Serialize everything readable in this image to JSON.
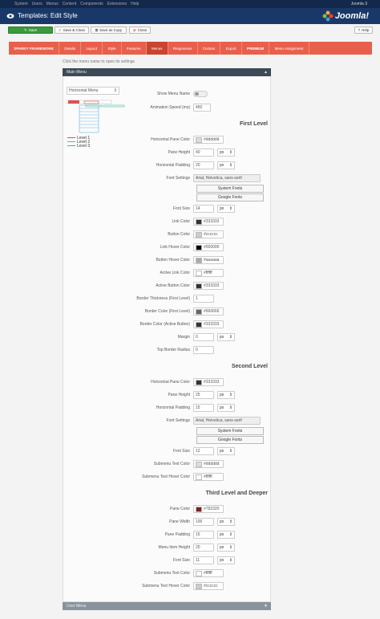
{
  "topbar": {
    "menu": [
      "System",
      "Users",
      "Menus",
      "Content",
      "Components",
      "Extensions",
      "Help"
    ],
    "user": "Joomla 3"
  },
  "header": {
    "title": "Templates: Edit Style",
    "logo": "Joomla!"
  },
  "toolbar": {
    "buttons": [
      "Save",
      "Save & Close",
      "Save as Copy",
      "Close"
    ],
    "help": "Help"
  },
  "tabs": [
    "SPARKY FRAMEWORK",
    "Details",
    "Layout",
    "Style",
    "Features",
    "Menus",
    "Responsive",
    "Custom",
    "Export",
    "PREMIUM",
    "Menu Assignment"
  ],
  "active_tab": 5,
  "hint": "Click the menu name to open its settings",
  "panels": [
    {
      "title": "Main Menu"
    },
    {
      "title": "User Menu"
    }
  ],
  "menu_select": "Horizontal Menu",
  "legend": [
    {
      "label": "Level 1",
      "color": "#d9534f"
    },
    {
      "label": "Level 2",
      "color": "#3cc5a4"
    },
    {
      "label": "Level 3",
      "color": "#4aa3df"
    }
  ],
  "intro_rows": [
    {
      "label": "Show Menu Name"
    },
    {
      "label": "Animation Speed (ms)",
      "value": 450
    }
  ],
  "sections": [
    {
      "title": "First Level",
      "rows": [
        {
          "label": "Horizontal Pane Color",
          "value": "#dddddd"
        },
        {
          "label": "Pane Height",
          "value": 40,
          "unit": "px"
        },
        {
          "label": "Horizontal Padding",
          "value": 20,
          "unit": "px"
        },
        {
          "label": "Font Settings",
          "value": "Arial, Helvetica, sans-serif",
          "buttons": [
            "System Fonts",
            "Google Fonts"
          ]
        },
        {
          "label": "Font Size",
          "value": 14,
          "unit": "px"
        },
        {
          "label": "Link Color",
          "value": "#333333"
        },
        {
          "label": "Button Color",
          "value": "#cccccc"
        },
        {
          "label": "Link Hover Color",
          "value": "#000000"
        },
        {
          "label": "Button Hover Color",
          "value": "#aaaaaa"
        },
        {
          "label": "Active Link Color",
          "value": "#ffffff"
        },
        {
          "label": "Active Button Color",
          "value": "#333333"
        },
        {
          "label": "Border Thickness (First Level)",
          "value": 1
        },
        {
          "label": "Border Color (First Level)",
          "value": "#666666"
        },
        {
          "label": "Border Color (Active Button)",
          "value": "#333333"
        },
        {
          "label": "Margin",
          "value": 0,
          "unit": "px"
        },
        {
          "label": "Top Border Radius",
          "value": 0
        }
      ]
    },
    {
      "title": "Second Level",
      "rows": [
        {
          "label": "Horizontal Pane Color",
          "value": "#333333"
        },
        {
          "label": "Pane Height",
          "value": 25,
          "unit": "px"
        },
        {
          "label": "Horizontal Padding",
          "value": 15,
          "unit": "px"
        },
        {
          "label": "Font Settings",
          "value": "Arial, Helvetica, sans-serif",
          "buttons": [
            "System Fonts",
            "Google Fonts"
          ]
        },
        {
          "label": "Font Size",
          "value": 12,
          "unit": "px"
        },
        {
          "label": "Submenu Text Color",
          "value": "#dddddd"
        },
        {
          "label": "Submenu Text Hover Color",
          "value": "#ffffff"
        }
      ]
    },
    {
      "title": "Third Level and Deeper",
      "rows": [
        {
          "label": "Pane Color",
          "value": "#782320"
        },
        {
          "label": "Pane Width",
          "value": 100,
          "unit": "px"
        },
        {
          "label": "Pane Padding",
          "value": 15,
          "unit": "px"
        },
        {
          "label": "Menu Item Height",
          "value": 20,
          "unit": "px"
        },
        {
          "label": "Font Size",
          "value": 11,
          "unit": "px"
        },
        {
          "label": "Submenu Text Color",
          "value": "#ffffff"
        },
        {
          "label": "Submenu Text Hover Color",
          "value": "#cccccc"
        }
      ]
    }
  ]
}
